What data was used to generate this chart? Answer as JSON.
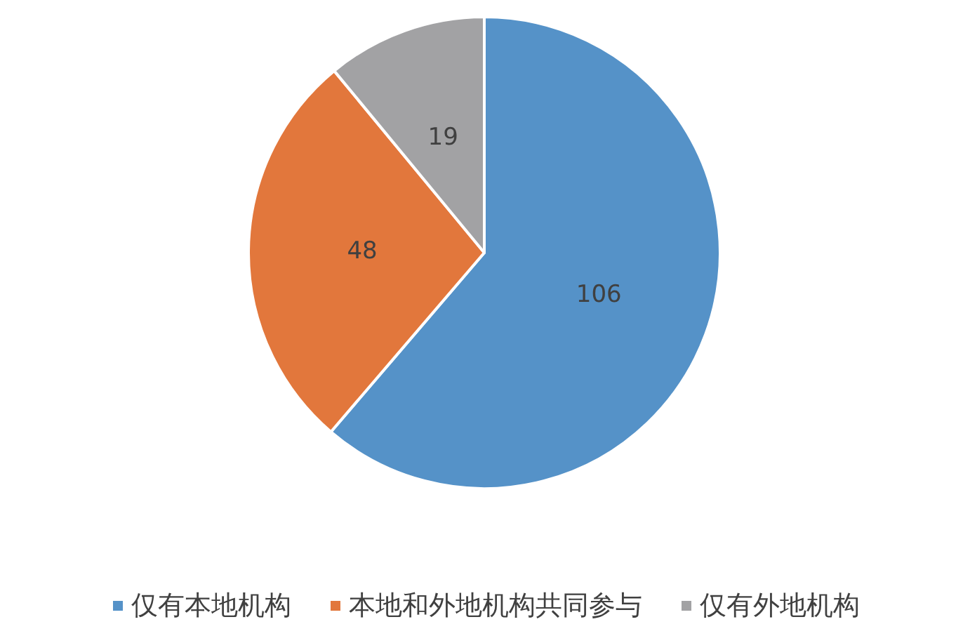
{
  "chart_data": {
    "type": "pie",
    "categories": [
      "仅有本地机构",
      "本地和外地机构共同参与",
      "仅有外地机构"
    ],
    "values": [
      106,
      48,
      19
    ],
    "colors": [
      "#5592c8",
      "#e2773c",
      "#a2a2a4"
    ],
    "data_labels": true,
    "legend": "bottom"
  }
}
